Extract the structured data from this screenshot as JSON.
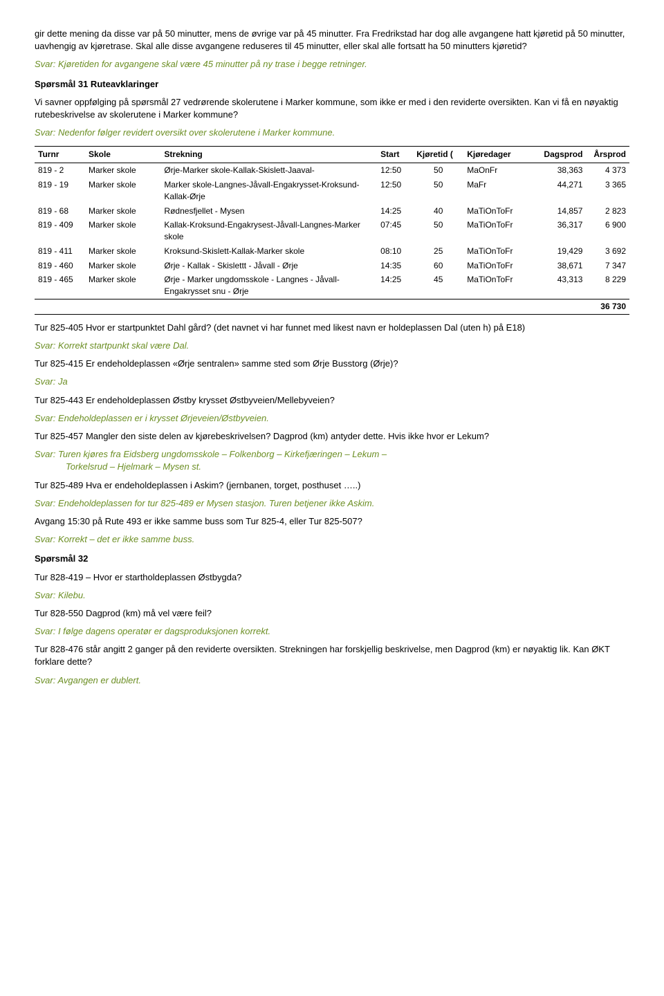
{
  "intro": {
    "p1": "gir dette mening da disse var på 50 minutter, mens de øvrige var på 45 minutter. Fra Fredrikstad har dog alle avgangene hatt kjøretid på 50 minutter, uavhengig av kjøretrase. Skal alle disse avgangene reduseres til 45 minutter, eller skal alle fortsatt ha 50 minutters kjøretid?",
    "a1": "Svar: Kjøretiden for avgangene skal være 45 minutter på ny trase i begge retninger."
  },
  "q31": {
    "heading": "Spørsmål 31 Ruteavklaringer",
    "p1": "Vi savner oppfølging på spørsmål 27 vedrørende skolerutene i Marker kommune, som ikke er med i den reviderte oversikten. Kan vi få en nøyaktig rutebeskrivelse av skolerutene i Marker kommune?",
    "a1": "Svar: Nedenfor følger revidert oversikt over skolerutene i Marker kommune."
  },
  "table": {
    "headers": {
      "turnr": "Turnr",
      "skole": "Skole",
      "strekning": "Strekning",
      "start": "Start",
      "kjoretid": "Kjøretid (",
      "kjoredager": "Kjøredager",
      "dagsprod": "Dagsprod",
      "arsprod": "Årsprod"
    },
    "rows": [
      {
        "turnr": "819 - 2",
        "skole": "Marker skole",
        "strekning": "Ørje-Marker skole-Kallak-Skislett-Jaaval-",
        "start": "12:50",
        "kjoretid": "50",
        "kjoredager": "MaOnFr",
        "dagsprod": "38,363",
        "arsprod": "4 373"
      },
      {
        "turnr": "819 - 19",
        "skole": "Marker skole",
        "strekning": "Marker skole-Langnes-Jåvall-Engakrysset-Kroksund-Kallak-Ørje",
        "start": "12:50",
        "kjoretid": "50",
        "kjoredager": "MaFr",
        "dagsprod": "44,271",
        "arsprod": "3 365"
      },
      {
        "turnr": "819 - 68",
        "skole": "Marker skole",
        "strekning": "Rødnesfjellet - Mysen",
        "start": "14:25",
        "kjoretid": "40",
        "kjoredager": "MaTiOnToFr",
        "dagsprod": "14,857",
        "arsprod": "2 823"
      },
      {
        "turnr": "819 - 409",
        "skole": "Marker skole",
        "strekning": "Kallak-Kroksund-Engakrysest-Jåvall-Langnes-Marker skole",
        "start": "07:45",
        "kjoretid": "50",
        "kjoredager": "MaTiOnToFr",
        "dagsprod": "36,317",
        "arsprod": "6 900"
      },
      {
        "turnr": "819 - 411",
        "skole": "Marker skole",
        "strekning": "Kroksund-Skislett-Kallak-Marker skole",
        "start": "08:10",
        "kjoretid": "25",
        "kjoredager": "MaTiOnToFr",
        "dagsprod": "19,429",
        "arsprod": "3 692"
      },
      {
        "turnr": "819 - 460",
        "skole": "Marker skole",
        "strekning": "Ørje - Kallak - Skislettt - Jåvall - Ørje",
        "start": "14:35",
        "kjoretid": "60",
        "kjoredager": "MaTiOnToFr",
        "dagsprod": "38,671",
        "arsprod": "7 347"
      },
      {
        "turnr": "819 - 465",
        "skole": "Marker skole",
        "strekning": "Ørje  - Marker ungdomsskole - Langnes - Jåvall- Engakrysset snu - Ørje",
        "start": "14:25",
        "kjoretid": "45",
        "kjoredager": "MaTiOnToFr",
        "dagsprod": "43,313",
        "arsprod": "8 229"
      }
    ],
    "total": "36 730"
  },
  "qa": [
    {
      "q": "Tur 825-405 Hvor er startpunktet Dahl gård? (det navnet vi har funnet med likest navn er holdeplassen Dal (uten h) på E18)",
      "a": "Svar: Korrekt startpunkt skal være Dal."
    },
    {
      "q": "Tur 825-415 Er endeholdeplassen «Ørje sentralen» samme sted som Ørje Busstorg (Ørje)?",
      "a": "Svar: Ja"
    },
    {
      "q": "Tur 825-443 Er endeholdeplassen Østby krysset Østbyveien/Mellebyveien?",
      "a": "Svar: Endeholdeplassen er i krysset Ørjeveien/Østbyveien."
    },
    {
      "q": "Tur 825-457 Mangler den siste delen av kjørebeskrivelsen? Dagprod (km) antyder dette. Hvis ikke hvor er Lekum?",
      "a_line1": "Svar: Turen kjøres fra Eidsberg ungdomsskole – Folkenborg – Kirkefjæringen – Lekum –",
      "a_line2": "Torkelsrud – Hjelmark – Mysen st."
    },
    {
      "q": "Tur 825-489 Hva er endeholdeplassen i Askim? (jernbanen, torget, posthuset …..)",
      "a": "Svar: Endeholdeplassen for tur 825-489 er Mysen stasjon. Turen betjener ikke Askim."
    },
    {
      "q": " Avgang 15:30 på Rute 493 er ikke samme buss som Tur 825-4, eller Tur 825-507?",
      "a": "Svar: Korrekt – det er ikke samme buss."
    }
  ],
  "q32": {
    "heading": "Spørsmål 32",
    "items": [
      {
        "q": "Tur 828-419 – Hvor er startholdeplassen Østbygda?",
        "a": "Svar: Kilebu."
      },
      {
        "q": "Tur 828-550 Dagprod (km) må vel være feil?",
        "a": "Svar: I følge dagens operatør er dagsproduksjonen korrekt."
      },
      {
        "q": "Tur 828-476 står angitt 2 ganger på den reviderte oversikten. Strekningen har forskjellig beskrivelse, men Dagprod (km) er nøyaktig lik. Kan ØKT forklare dette?",
        "a": "Svar: Avgangen er dublert."
      }
    ]
  }
}
